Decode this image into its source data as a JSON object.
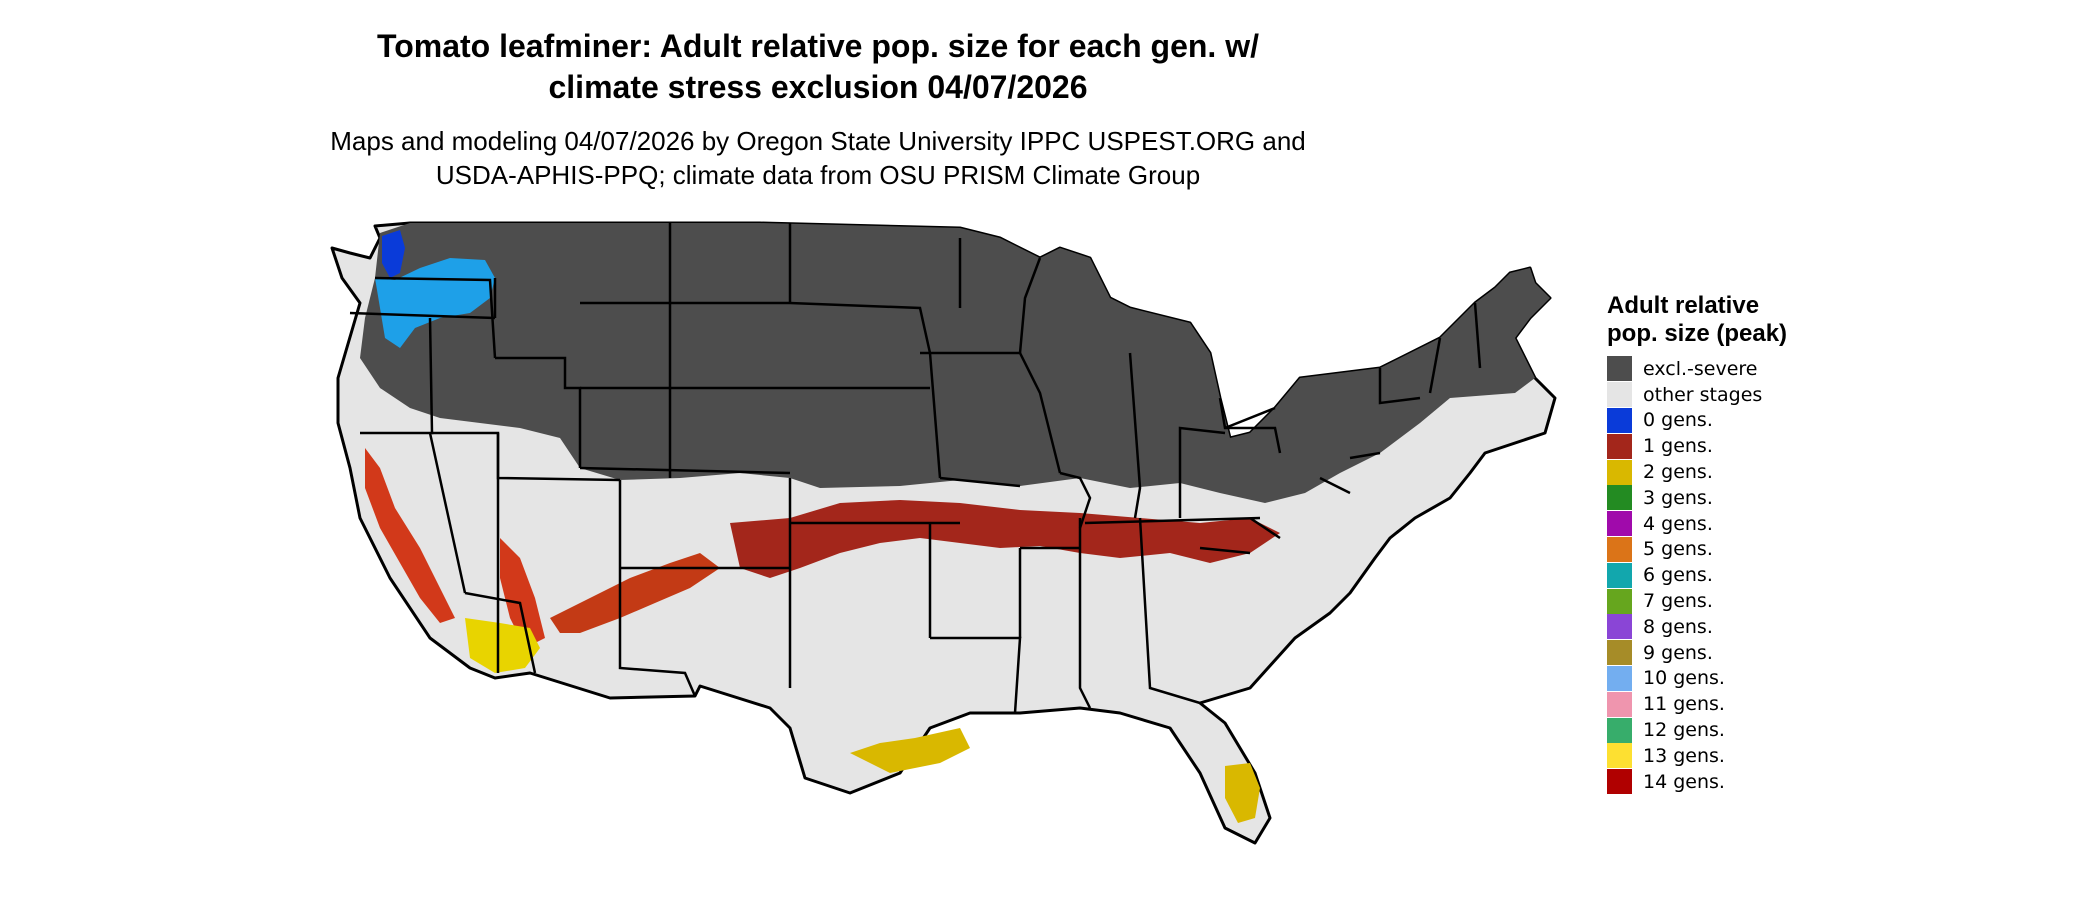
{
  "title_line1": "Tomato leafminer: Adult relative pop. size for each gen. w/",
  "title_line2": "climate stress exclusion 04/07/2026",
  "subtitle_line1": "Maps and modeling 04/07/2026 by Oregon State University IPPC USPEST.ORG and",
  "subtitle_line2": "USDA-APHIS-PPQ; climate data from OSU PRISM Climate Group",
  "legend": {
    "title": "Adult relative pop. size (peak)",
    "items": [
      {
        "label": "excl.-severe",
        "color": "#4d4d4d"
      },
      {
        "label": "other stages",
        "color": "#e5e5e5"
      },
      {
        "label": "0 gens.",
        "color": "#0a3bd9"
      },
      {
        "label": "1 gens.",
        "color": "#a3261b"
      },
      {
        "label": "2 gens.",
        "color": "#d9b800"
      },
      {
        "label": "3 gens.",
        "color": "#238b22"
      },
      {
        "label": "4 gens.",
        "color": "#a00aab"
      },
      {
        "label": "5 gens.",
        "color": "#db7418"
      },
      {
        "label": "6 gens.",
        "color": "#12a7ad"
      },
      {
        "label": "7 gens.",
        "color": "#66a61e"
      },
      {
        "label": "8 gens.",
        "color": "#8a45d6"
      },
      {
        "label": "9 gens.",
        "color": "#a68c28"
      },
      {
        "label": "10 gens.",
        "color": "#73aef0"
      },
      {
        "label": "11 gens.",
        "color": "#ef95ae"
      },
      {
        "label": "12 gens.",
        "color": "#37ad6b"
      },
      {
        "label": "13 gens.",
        "color": "#fde031"
      },
      {
        "label": "14 gens.",
        "color": "#b00000"
      }
    ]
  }
}
